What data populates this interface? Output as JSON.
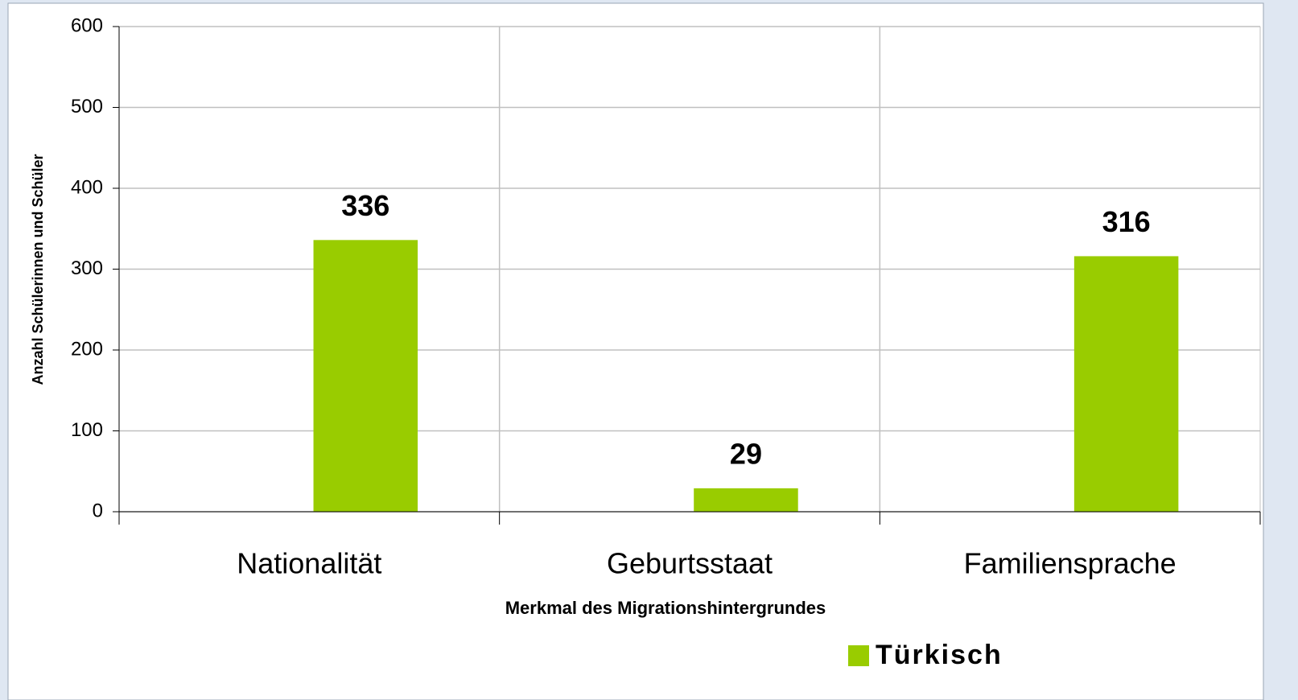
{
  "chart_data": {
    "type": "bar",
    "x_label": "Merkmal des Migrationshintergrundes",
    "y_label": "Anzahl Schülerinnen und Schüler",
    "categories": [
      "Nationalität",
      "Geburtsstaat",
      "Familiensprache"
    ],
    "series": [
      {
        "name": "Türkisch",
        "color": "#99cc00",
        "values": [
          336,
          29,
          316
        ]
      }
    ],
    "ylim": [
      0,
      600
    ],
    "yticks": [
      0,
      100,
      200,
      300,
      400,
      500,
      600
    ],
    "grid": true,
    "legend": "bottom"
  }
}
